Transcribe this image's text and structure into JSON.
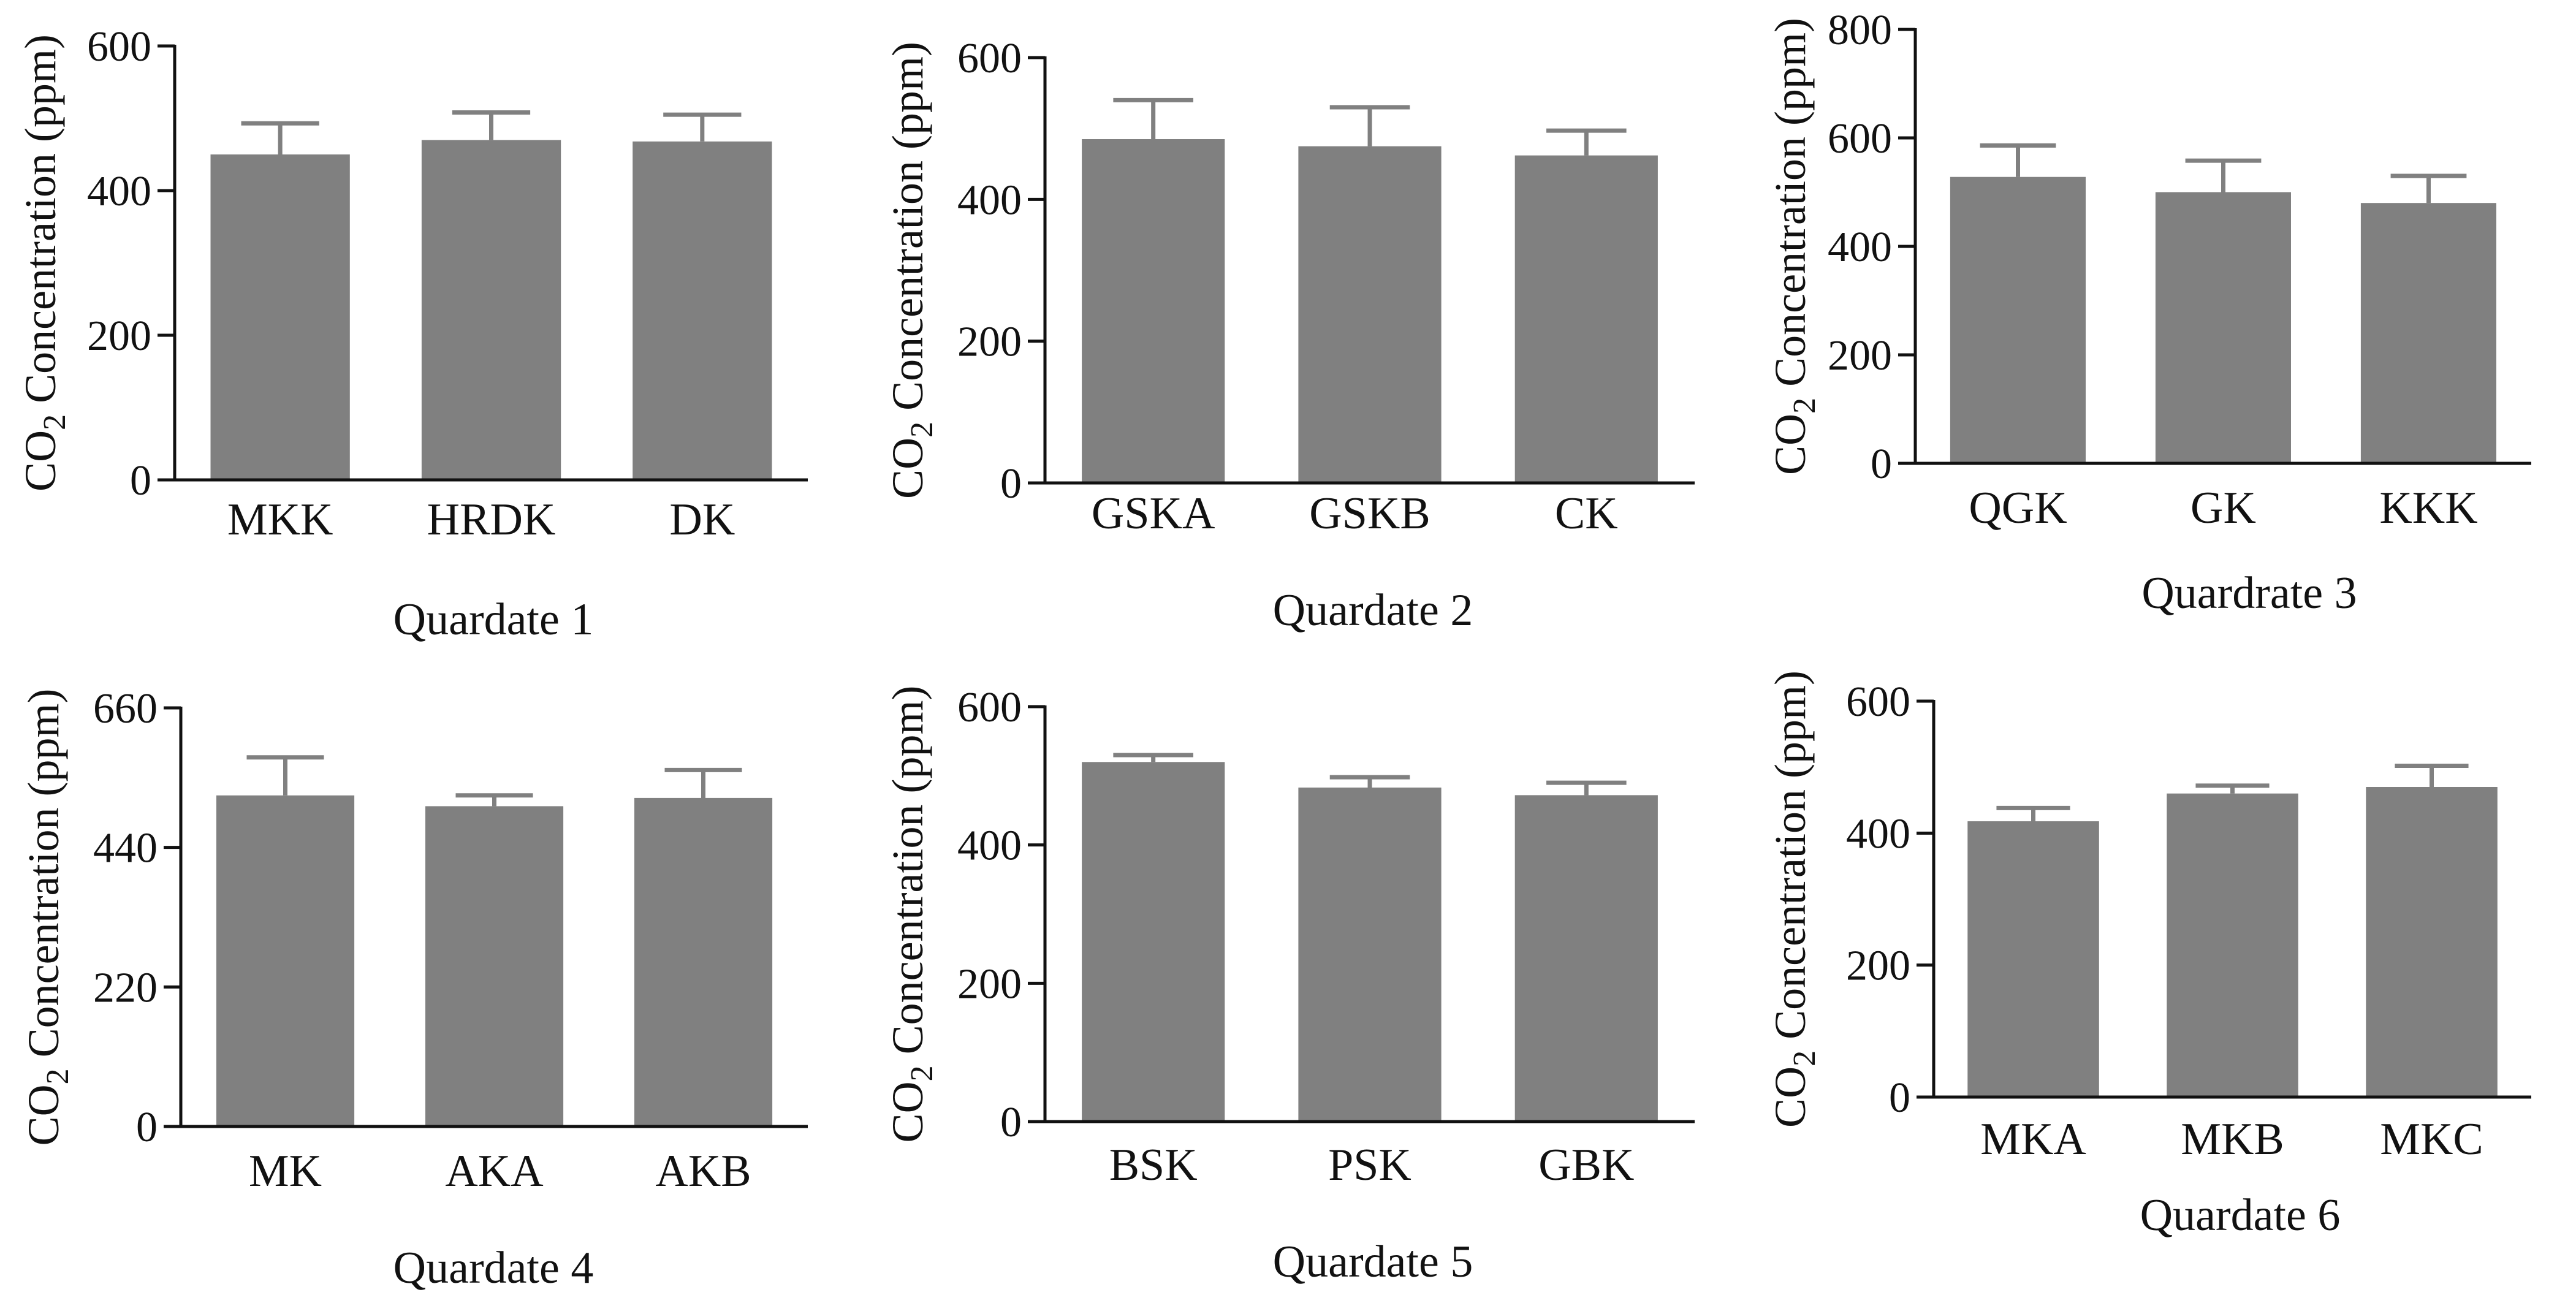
{
  "colors": {
    "bar": "#808080",
    "axis": "#111111",
    "background": "#ffffff"
  },
  "chart_data": [
    {
      "type": "bar",
      "title": "Quardate 1",
      "ylabel_main": "CO",
      "ylabel_sub": "2",
      "ylabel_rest": " Concentration (ppm)",
      "categories": [
        "MKK",
        "HRDK",
        "DK"
      ],
      "values": [
        450,
        470,
        468
      ],
      "errors": [
        43,
        38,
        37
      ],
      "ylim": [
        0,
        600
      ],
      "yticks": [
        0,
        200,
        400,
        600
      ],
      "ytick_labels": [
        "0",
        "200",
        "400",
        "600"
      ]
    },
    {
      "type": "bar",
      "title": "Quardate 2",
      "ylabel_main": "CO",
      "ylabel_sub": "2",
      "ylabel_rest": " Concentration (ppm)",
      "categories": [
        "GSKA",
        "GSKB",
        "CK"
      ],
      "values": [
        485,
        475,
        462
      ],
      "errors": [
        55,
        55,
        35
      ],
      "ylim": [
        0,
        600
      ],
      "yticks": [
        0,
        200,
        400,
        600
      ],
      "ytick_labels": [
        "0",
        "200",
        "400",
        "600"
      ]
    },
    {
      "type": "bar",
      "title": "Quardrate 3",
      "ylabel_main": "CO",
      "ylabel_sub": "2",
      "ylabel_rest": " Concentration (ppm)",
      "categories": [
        "QGK",
        "GK",
        "KKK"
      ],
      "values": [
        528,
        500,
        480
      ],
      "errors": [
        58,
        58,
        50
      ],
      "ylim": [
        0,
        800
      ],
      "yticks": [
        0,
        200,
        400,
        600,
        800
      ],
      "ytick_labels": [
        "0",
        "200",
        "400",
        "600",
        "800"
      ]
    },
    {
      "type": "bar",
      "title": "Quardate 4",
      "ylabel_main": "CO",
      "ylabel_sub": "2",
      "ylabel_rest": " Concentration (ppm)",
      "categories": [
        "MK",
        "AKA",
        "AKB"
      ],
      "values": [
        522,
        505,
        518
      ],
      "errors": [
        60,
        17,
        44
      ],
      "ylim": [
        0,
        660
      ],
      "yticks": [
        0,
        220,
        440,
        660
      ],
      "ytick_labels": [
        "0",
        "220",
        "440",
        "660"
      ]
    },
    {
      "type": "bar",
      "title": "Quardate 5",
      "ylabel_main": "CO",
      "ylabel_sub": "2",
      "ylabel_rest": " Concentration (ppm)",
      "categories": [
        "BSK",
        "PSK",
        "GBK"
      ],
      "values": [
        520,
        483,
        472
      ],
      "errors": [
        10,
        15,
        18
      ],
      "ylim": [
        0,
        600
      ],
      "yticks": [
        0,
        200,
        400,
        600
      ],
      "ytick_labels": [
        "0",
        "200",
        "400",
        "600"
      ]
    },
    {
      "type": "bar",
      "title": "Quardate 6",
      "ylabel_main": "CO",
      "ylabel_sub": "2",
      "ylabel_rest": " Concentration (ppm)",
      "categories": [
        "MKA",
        "MKB",
        "MKC"
      ],
      "values": [
        418,
        460,
        470
      ],
      "errors": [
        20,
        12,
        32
      ],
      "ylim": [
        0,
        600
      ],
      "yticks": [
        0,
        200,
        400,
        600
      ],
      "ytick_labels": [
        "0",
        "200",
        "400",
        "600"
      ]
    }
  ]
}
